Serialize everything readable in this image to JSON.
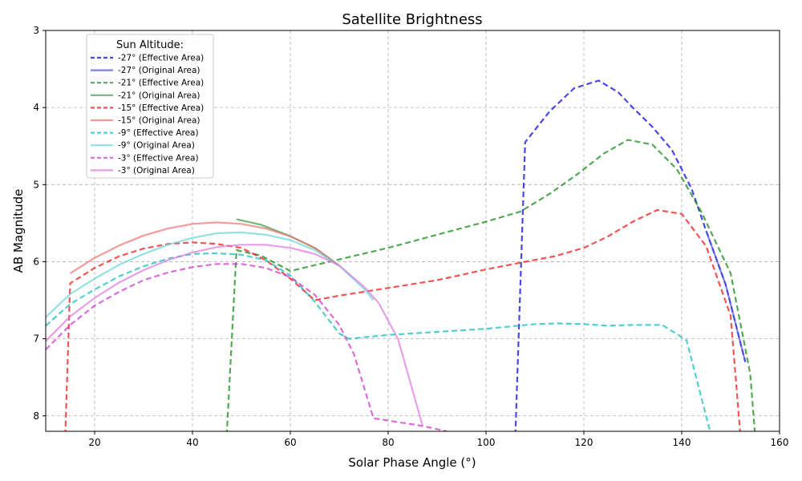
{
  "chart_data": {
    "type": "line",
    "title": "Satellite Brightness",
    "xlabel": "Solar Phase Angle (°)",
    "ylabel": "AB Magnitude",
    "xlim": [
      10,
      160
    ],
    "ylim": [
      3,
      8.2
    ],
    "y_inverted": true,
    "xticks": [
      "20",
      "40",
      "60",
      "80",
      "100",
      "120",
      "140",
      "160"
    ],
    "yticks": [
      "3",
      "4",
      "5",
      "6",
      "7",
      "8"
    ],
    "grid": true,
    "legend_title": "Sun Altitude:",
    "legend_position": "upper-left",
    "series": [
      {
        "name": "-27° (Effective Area)",
        "color": "#0000dd",
        "style": "dashed",
        "x": [
          106,
          108,
          113,
          118,
          123,
          127,
          130,
          134,
          138,
          142,
          145,
          149,
          153
        ],
        "y": [
          8.25,
          4.45,
          4.05,
          3.75,
          3.65,
          3.8,
          4.0,
          4.25,
          4.55,
          5.05,
          5.6,
          6.3,
          7.3
        ]
      },
      {
        "name": "-27° (Original Area)",
        "color": "#4b4bdd",
        "style": "solid",
        "x": [
          145,
          149,
          153
        ],
        "y": [
          5.6,
          6.3,
          7.3
        ]
      },
      {
        "name": "-21° (Effective Area)",
        "color": "#118811",
        "style": "dashed",
        "x": [
          47,
          49,
          54,
          60,
          70,
          80,
          90,
          100,
          107,
          113,
          119,
          124,
          129,
          134,
          139,
          144,
          150,
          154,
          155
        ],
        "y": [
          8.25,
          5.85,
          5.92,
          6.12,
          5.97,
          5.82,
          5.65,
          5.48,
          5.35,
          5.12,
          4.85,
          4.6,
          4.42,
          4.48,
          4.8,
          5.35,
          6.15,
          7.45,
          8.25
        ]
      },
      {
        "name": "-21° (Original Area)",
        "color": "#3a9a3a",
        "style": "solid",
        "x": [
          49,
          54,
          60,
          65,
          70
        ],
        "y": [
          5.45,
          5.52,
          5.67,
          5.82,
          6.05
        ]
      },
      {
        "name": "-15° (Effective Area)",
        "color": "#ee1111",
        "style": "dashed",
        "x": [
          14,
          15,
          20,
          25,
          30,
          35,
          40,
          45,
          50,
          55,
          60,
          65,
          70,
          80,
          90,
          100,
          108,
          114,
          120,
          125,
          130,
          135,
          140,
          145,
          150,
          152
        ],
        "y": [
          8.25,
          6.28,
          6.08,
          5.93,
          5.83,
          5.77,
          5.75,
          5.77,
          5.82,
          5.98,
          6.22,
          6.5,
          6.44,
          6.34,
          6.24,
          6.1,
          6.0,
          5.93,
          5.82,
          5.67,
          5.48,
          5.33,
          5.38,
          5.8,
          6.7,
          8.25
        ]
      },
      {
        "name": "-15° (Original Area)",
        "color": "#f07070",
        "style": "solid",
        "x": [
          15,
          20,
          25,
          30,
          35,
          40,
          45,
          50,
          55,
          60,
          65,
          70
        ],
        "y": [
          6.15,
          5.95,
          5.79,
          5.66,
          5.57,
          5.51,
          5.49,
          5.51,
          5.57,
          5.67,
          5.82,
          6.05
        ]
      },
      {
        "name": "-9° (Effective Area)",
        "color": "#11bbbb",
        "style": "dashed",
        "x": [
          10,
          15,
          20,
          25,
          30,
          35,
          40,
          45,
          50,
          55,
          60,
          65,
          70,
          72,
          80,
          90,
          100,
          105,
          110,
          115,
          120,
          125,
          130,
          136,
          141,
          146
        ],
        "y": [
          6.83,
          6.55,
          6.36,
          6.19,
          6.06,
          5.96,
          5.9,
          5.89,
          5.91,
          5.98,
          6.18,
          6.52,
          6.93,
          7.0,
          6.95,
          6.91,
          6.87,
          6.84,
          6.81,
          6.8,
          6.81,
          6.83,
          6.82,
          6.82,
          7.02,
          8.25
        ]
      },
      {
        "name": "-9° (Original Area)",
        "color": "#66d4d4",
        "style": "solid",
        "x": [
          10,
          15,
          20,
          25,
          30,
          35,
          40,
          45,
          50,
          55,
          60,
          65,
          70,
          75,
          77
        ],
        "y": [
          6.72,
          6.42,
          6.22,
          6.04,
          5.9,
          5.78,
          5.69,
          5.63,
          5.62,
          5.65,
          5.72,
          5.85,
          6.05,
          6.35,
          6.5
        ]
      },
      {
        "name": "-3° (Effective Area)",
        "color": "#cc33cc",
        "style": "dashed",
        "x": [
          10,
          15,
          20,
          25,
          30,
          35,
          40,
          45,
          50,
          55,
          60,
          65,
          70,
          73,
          77,
          87,
          92
        ],
        "y": [
          7.14,
          6.82,
          6.57,
          6.39,
          6.24,
          6.14,
          6.07,
          6.03,
          6.03,
          6.08,
          6.2,
          6.43,
          6.82,
          7.2,
          8.03,
          8.13,
          8.2
        ]
      },
      {
        "name": "-3° (Original Area)",
        "color": "#dd77dd",
        "style": "solid",
        "x": [
          10,
          15,
          20,
          25,
          30,
          35,
          40,
          45,
          50,
          55,
          60,
          65,
          70,
          75,
          78,
          82,
          87
        ],
        "y": [
          7.03,
          6.71,
          6.47,
          6.27,
          6.11,
          5.98,
          5.88,
          5.81,
          5.78,
          5.78,
          5.82,
          5.9,
          6.05,
          6.32,
          6.53,
          7.0,
          8.12
        ]
      }
    ]
  }
}
